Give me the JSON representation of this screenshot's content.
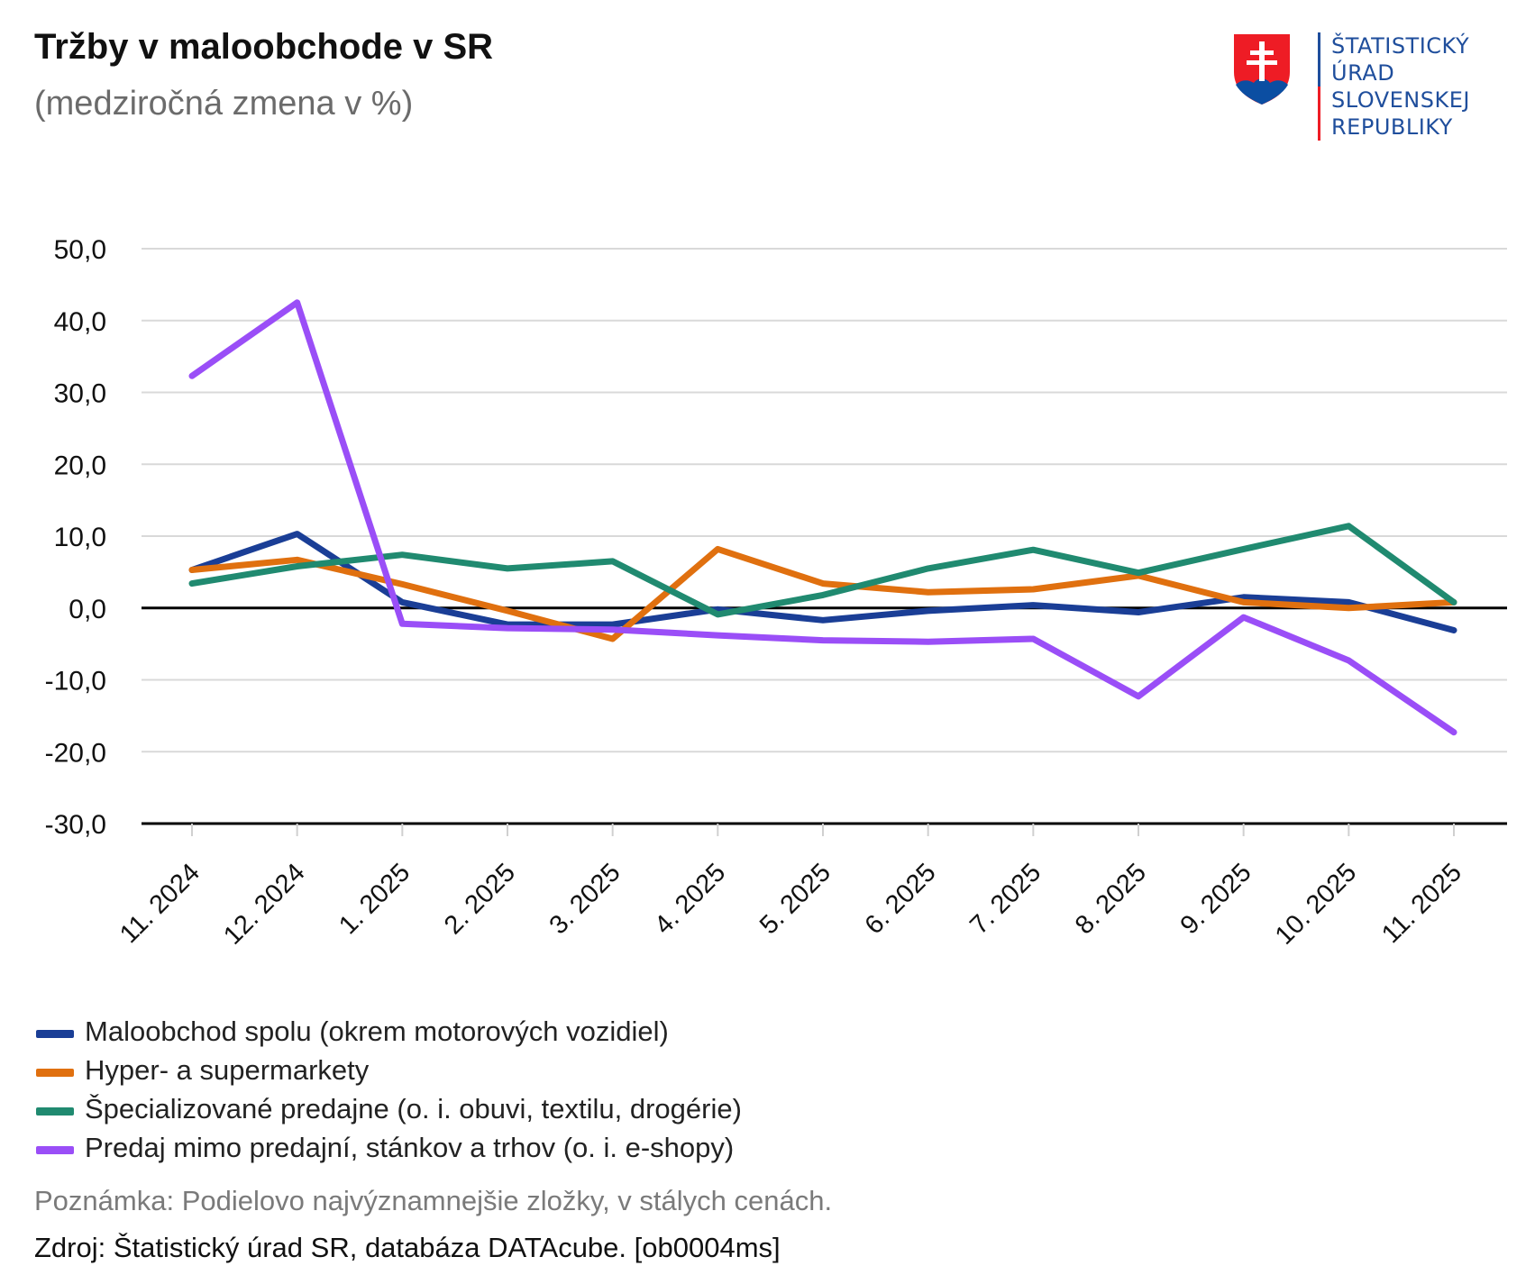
{
  "header": {
    "title": "Tržby v maloobchode v SR",
    "subtitle": "(medziročná zmena v %)"
  },
  "logo": {
    "lines": [
      "ŠTATISTICKÝ",
      "ÚRAD",
      "SLOVENSKEJ",
      "REPUBLIKY"
    ],
    "colors": {
      "shield_red": "#ee1c25",
      "shield_blue": "#0b4ea2",
      "text": "#1f4e9c"
    }
  },
  "chart_data": {
    "type": "line",
    "title": "Tržby v maloobchode v SR",
    "subtitle": "(medziročná zmena v %)",
    "xlabel": "",
    "ylabel": "",
    "ylim": [
      -30,
      50
    ],
    "yticks": [
      50,
      40,
      30,
      20,
      10,
      0,
      -10,
      -20,
      -30
    ],
    "ytick_labels": [
      "50,0",
      "40,0",
      "30,0",
      "20,0",
      "10,0",
      "0,0",
      "-10,0",
      "-20,0",
      "-30,0"
    ],
    "grid": true,
    "legend_position": "bottom-left",
    "categories": [
      "11. 2024",
      "12. 2024",
      "1. 2025",
      "2. 2025",
      "3. 2025",
      "4. 2025",
      "5. 2025",
      "6. 2025",
      "7. 2025",
      "8. 2025",
      "9. 2025",
      "10. 2025",
      "11. 2025"
    ],
    "series": [
      {
        "name": "Maloobchod spolu (okrem motorových vozidiel)",
        "color": "#1a3e96",
        "values": [
          5.3,
          10.3,
          0.8,
          -2.3,
          -2.3,
          -0.2,
          -1.7,
          -0.4,
          0.4,
          -0.6,
          1.5,
          0.8,
          -3.1
        ]
      },
      {
        "name": "Hyper- a supermarkety",
        "color": "#e0700f",
        "values": [
          5.3,
          6.7,
          3.3,
          -0.4,
          -4.3,
          8.2,
          3.4,
          2.2,
          2.6,
          4.5,
          0.8,
          0.0,
          0.8
        ]
      },
      {
        "name": "Špecializované predajne (o. i. obuvi, textilu, drogérie)",
        "color": "#208a70",
        "values": [
          3.4,
          5.8,
          7.4,
          5.5,
          6.5,
          -0.9,
          1.8,
          5.5,
          8.1,
          4.9,
          8.2,
          11.4,
          0.8
        ]
      },
      {
        "name": "Predaj mimo predajní, stánkov a trhov (o. i. e-shopy)",
        "color": "#9a4ef7",
        "values": [
          32.3,
          42.5,
          -2.2,
          -2.8,
          -3.0,
          -3.8,
          -4.5,
          -4.7,
          -4.3,
          -12.3,
          -1.3,
          -7.3,
          -17.3
        ]
      }
    ]
  },
  "footer": {
    "note": "Poznámka: Podielovo najvýznamnejšie zložky, v stálych cenách.",
    "source": "Zdroj: Štatistický úrad SR, databáza DATAcube. [ob0004ms]"
  }
}
